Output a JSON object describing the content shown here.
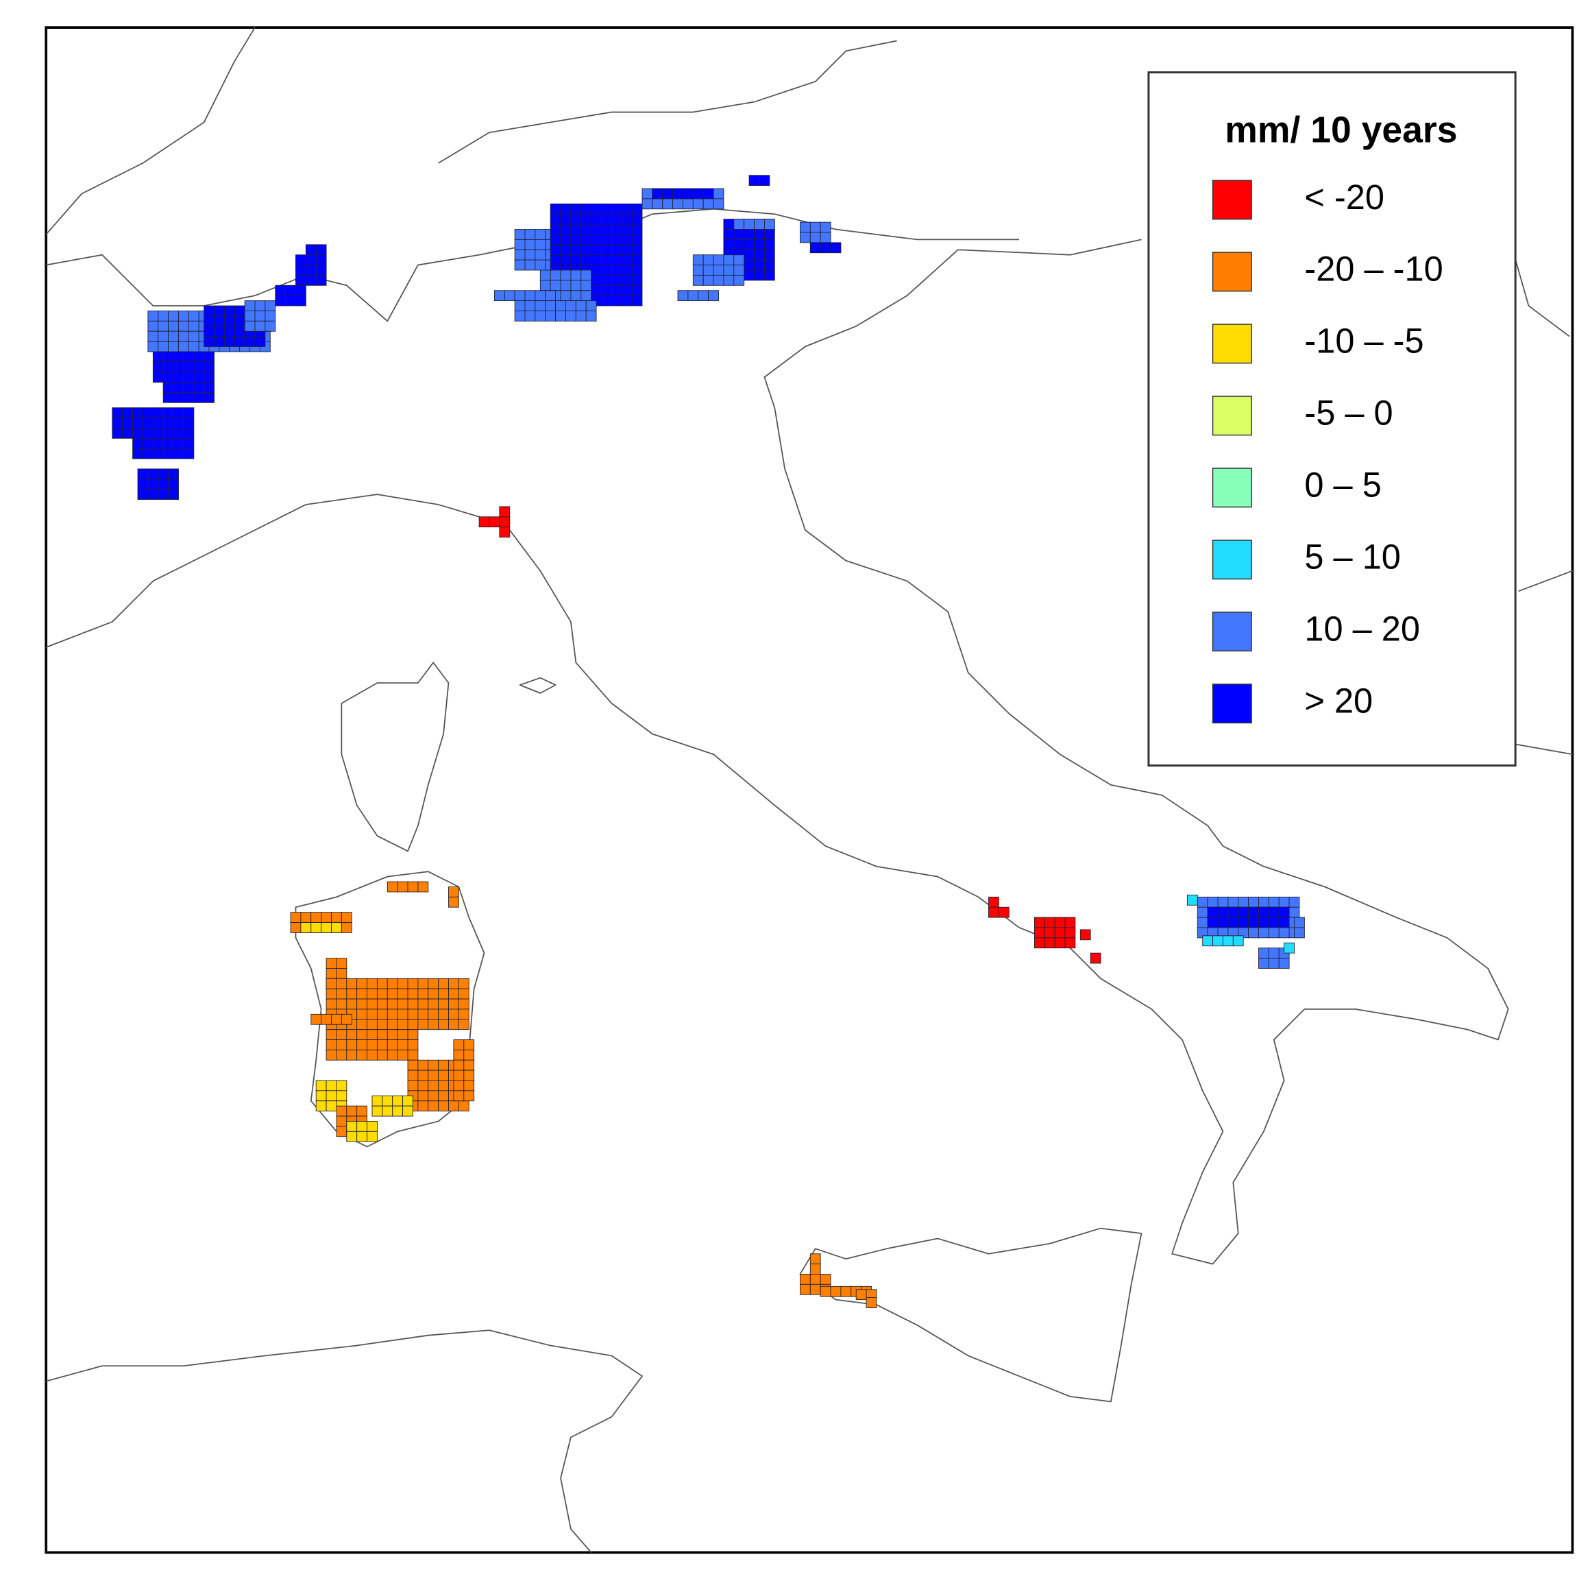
{
  "legend": {
    "title": "mm/ 10 years",
    "items": [
      {
        "label": "< -20",
        "color": "#ff0000"
      },
      {
        "label": "-20 – -10",
        "color": "#ff8000"
      },
      {
        "label": "-10 – -5",
        "color": "#ffdd00"
      },
      {
        "label": "-5 – 0",
        "color": "#ddff66"
      },
      {
        "label": "0 – 5",
        "color": "#88ffbb"
      },
      {
        "label": "5 – 10",
        "color": "#22ddff"
      },
      {
        "label": "10 – 20",
        "color": "#4477ff"
      },
      {
        "label": "> 20",
        "color": "#0000ff"
      }
    ]
  }
}
